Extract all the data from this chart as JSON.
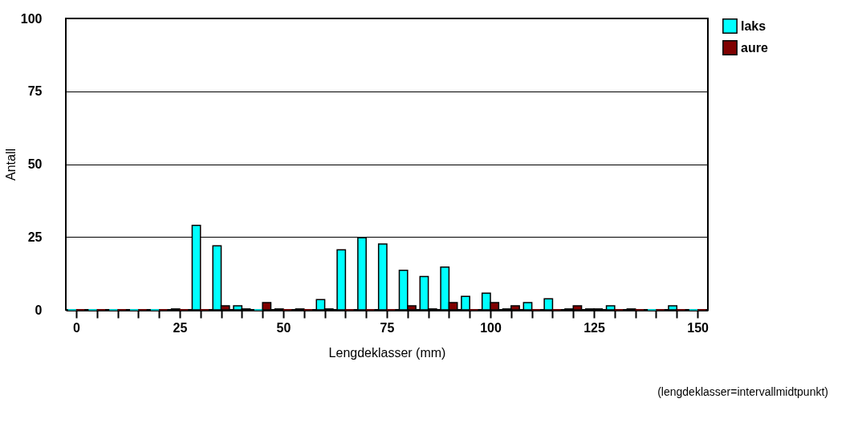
{
  "chart_data": {
    "type": "bar",
    "xlabel": "Lengdeklasser (mm)",
    "ylabel": "Antall",
    "x": [
      0,
      5,
      10,
      15,
      20,
      25,
      30,
      35,
      40,
      45,
      50,
      55,
      60,
      65,
      70,
      75,
      80,
      85,
      90,
      95,
      100,
      105,
      110,
      115,
      120,
      125,
      130,
      135,
      140,
      145,
      150
    ],
    "series": [
      {
        "name": "laks",
        "color": "#00ffff",
        "values": [
          0,
          0,
          0,
          0,
          0,
          0.3,
          29,
          22,
          1.4,
          0,
          0.3,
          0.3,
          3.5,
          20.6,
          24.7,
          22.6,
          13.6,
          11.4,
          14.7,
          4.6,
          5.7,
          0.3,
          2.5,
          3.8,
          0.3,
          0.3,
          1.4,
          0.3,
          0,
          1.4,
          0
        ]
      },
      {
        "name": "aure",
        "color": "#800000",
        "values": [
          0,
          0,
          0,
          0,
          0,
          0,
          0,
          1.4,
          0.3,
          2.5,
          0,
          0,
          0.3,
          0,
          0,
          0,
          1.4,
          0.3,
          2.5,
          0,
          2.5,
          1.4,
          0,
          0,
          1.4,
          0.3,
          0,
          0,
          0,
          0,
          0
        ]
      }
    ],
    "xlim": [
      -2.5,
      152.5
    ],
    "xticks": [
      0,
      {
        "value": 5,
        "label": null
      },
      {
        "value": 10,
        "label": null
      },
      {
        "value": 15,
        "label": null
      },
      {
        "value": 20,
        "label": null
      },
      25,
      {
        "value": 30,
        "label": null
      },
      {
        "value": 35,
        "label": null
      },
      {
        "value": 40,
        "label": null
      },
      {
        "value": 45,
        "label": null
      },
      50,
      {
        "value": 55,
        "label": null
      },
      {
        "value": 60,
        "label": null
      },
      {
        "value": 65,
        "label": null
      },
      {
        "value": 70,
        "label": null
      },
      75,
      {
        "value": 80,
        "label": null
      },
      {
        "value": 85,
        "label": null
      },
      {
        "value": 90,
        "label": null
      },
      {
        "value": 95,
        "label": null
      },
      100,
      {
        "value": 105,
        "label": null
      },
      {
        "value": 110,
        "label": null
      },
      {
        "value": 115,
        "label": null
      },
      {
        "value": 120,
        "label": null
      },
      125,
      {
        "value": 130,
        "label": null
      },
      {
        "value": 135,
        "label": null
      },
      {
        "value": 140,
        "label": null
      },
      {
        "value": 145,
        "label": null
      },
      150
    ],
    "ylim": [
      0,
      100
    ],
    "yticks": [
      0,
      25,
      50,
      75,
      100
    ],
    "grid": "y",
    "legend": "right",
    "annotations": [
      "(lengdeklasser=intervallmidtpunkt)"
    ]
  }
}
